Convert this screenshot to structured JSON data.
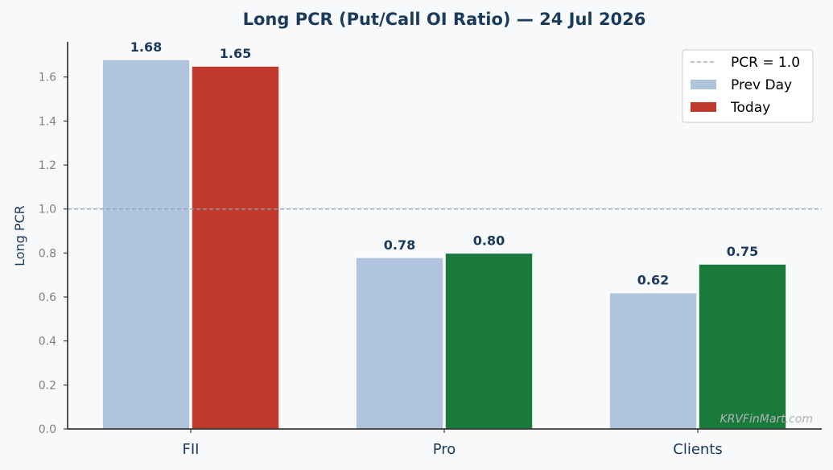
{
  "chart_data": {
    "type": "bar",
    "title": "Long PCR (Put/Call OI Ratio) — 24 Jul 2026",
    "xlabel": "",
    "ylabel": "Long PCR",
    "categories": [
      "FII",
      "Pro",
      "Clients"
    ],
    "series": [
      {
        "name": "Prev Day",
        "values": [
          1.68,
          0.78,
          0.62
        ],
        "labels": [
          "1.68",
          "0.78",
          "0.62"
        ],
        "colors": [
          "#b0c4de",
          "#b0c4de",
          "#b0c4de"
        ]
      },
      {
        "name": "Today",
        "values": [
          1.65,
          0.8,
          0.75
        ],
        "labels": [
          "1.65",
          "0.80",
          "0.75"
        ],
        "colors": [
          "#c0392b",
          "#1a7a3c",
          "#1a7a3c"
        ]
      }
    ],
    "reference_line": {
      "value": 1.0,
      "label": "PCR = 1.0",
      "style": "dashed",
      "color": "#8fa3b8"
    },
    "ylim": [
      0,
      1.76
    ],
    "yticks": [
      "0.0",
      "0.2",
      "0.4",
      "0.6",
      "0.8",
      "1.0",
      "1.2",
      "1.4",
      "1.6"
    ],
    "grid": false,
    "legend_position": "top-right",
    "legend_entries": [
      {
        "label": "PCR = 1.0",
        "kind": "line",
        "color": "#8fa3b8"
      },
      {
        "label": "Prev Day",
        "kind": "patch",
        "color": "#b0c4de"
      },
      {
        "label": "Today",
        "kind": "patch",
        "color": "#c0392b"
      }
    ]
  },
  "watermark": "KRVFinMart.com",
  "colors": {
    "background": "#f7f9fb",
    "title": "#1b3a5c",
    "axis": "#1a1a1a",
    "tick_label": "#808080"
  }
}
